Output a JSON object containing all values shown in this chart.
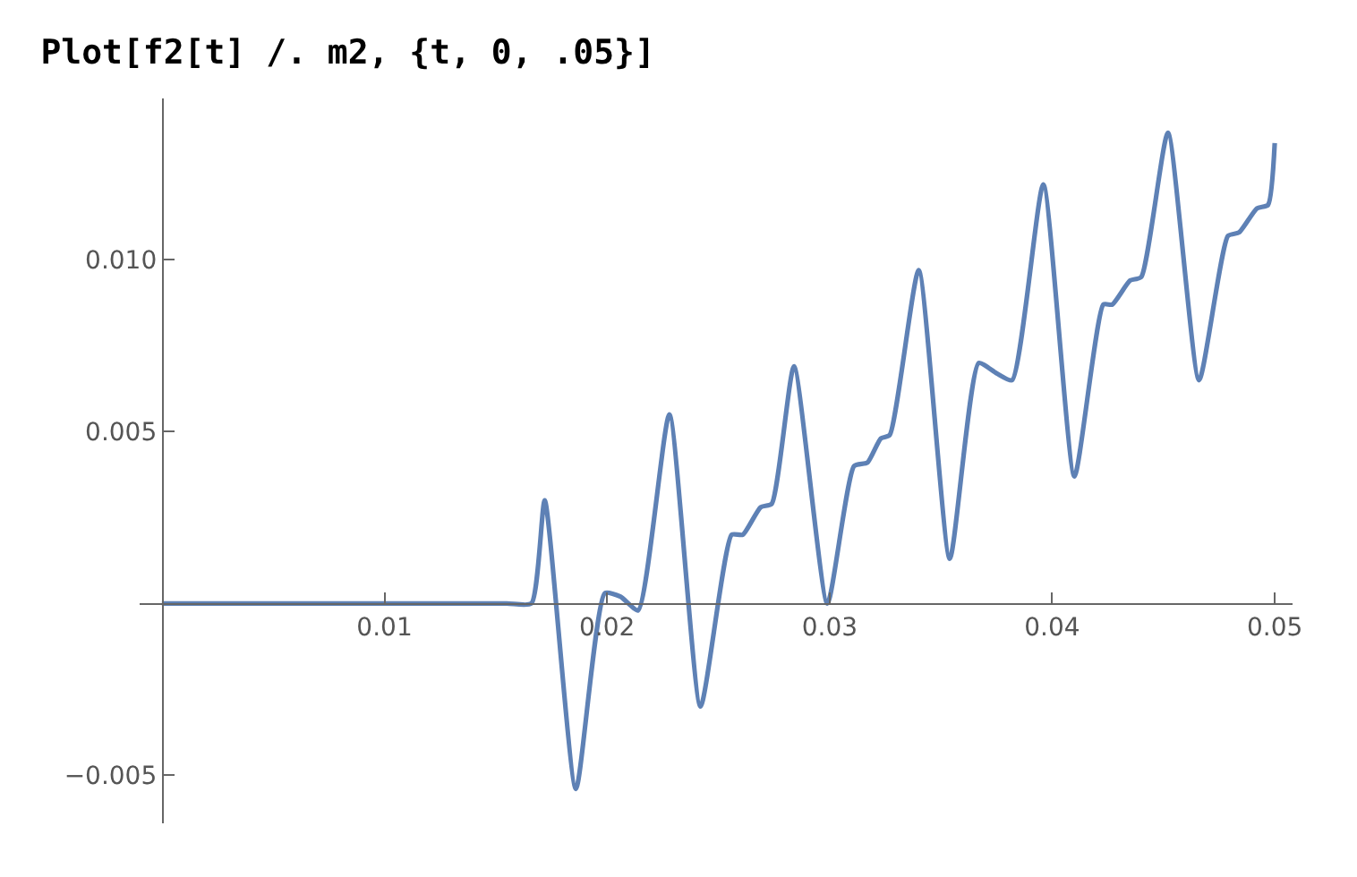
{
  "chart_data": {
    "type": "line",
    "title": "Plot[f2[t] /. m2, {t, 0, .05}]",
    "xlim": [
      -0.001,
      0.0508
    ],
    "ylim": [
      -0.0064,
      0.0147
    ],
    "xticks": [
      0.01,
      0.02,
      0.03,
      0.04,
      0.05
    ],
    "yticks": [
      {
        "value": -0.005,
        "label": "−0.005"
      },
      {
        "value": 0.005,
        "label": "0.005"
      },
      {
        "value": 0.01,
        "label": "0.010"
      }
    ],
    "legend": false,
    "marker": "none",
    "line_style": "solid",
    "series": [
      {
        "color": "#5e81b5",
        "x": [
          0,
          0.004,
          0.008,
          0.012,
          0.0155,
          0.0166,
          0.0172,
          0.0186,
          0.0199,
          0.0206,
          0.0214,
          0.0228,
          0.0242,
          0.0256,
          0.0261,
          0.0269,
          0.0274,
          0.0284,
          0.0299,
          0.0311,
          0.0317,
          0.0323,
          0.0327,
          0.034,
          0.0354,
          0.0367,
          0.0375,
          0.0382,
          0.0396,
          0.041,
          0.0423,
          0.0427,
          0.0435,
          0.044,
          0.0452,
          0.0466,
          0.0479,
          0.0484,
          0.0492,
          0.0497,
          0.05
        ],
        "values": [
          0,
          0,
          0,
          0,
          0,
          0,
          0.003,
          -0.0054,
          0.0003,
          0.0002,
          -0.0002,
          0.0055,
          -0.003,
          0.002,
          0.002,
          0.0028,
          0.0029,
          0.0069,
          0.0,
          0.004,
          0.0041,
          0.0048,
          0.0049,
          0.0097,
          0.0013,
          0.007,
          0.0067,
          0.0065,
          0.0122,
          0.0037,
          0.0087,
          0.0087,
          0.0094,
          0.0095,
          0.0137,
          0.0065,
          0.0107,
          0.0108,
          0.0115,
          0.0116,
          0.0134
        ]
      }
    ]
  }
}
